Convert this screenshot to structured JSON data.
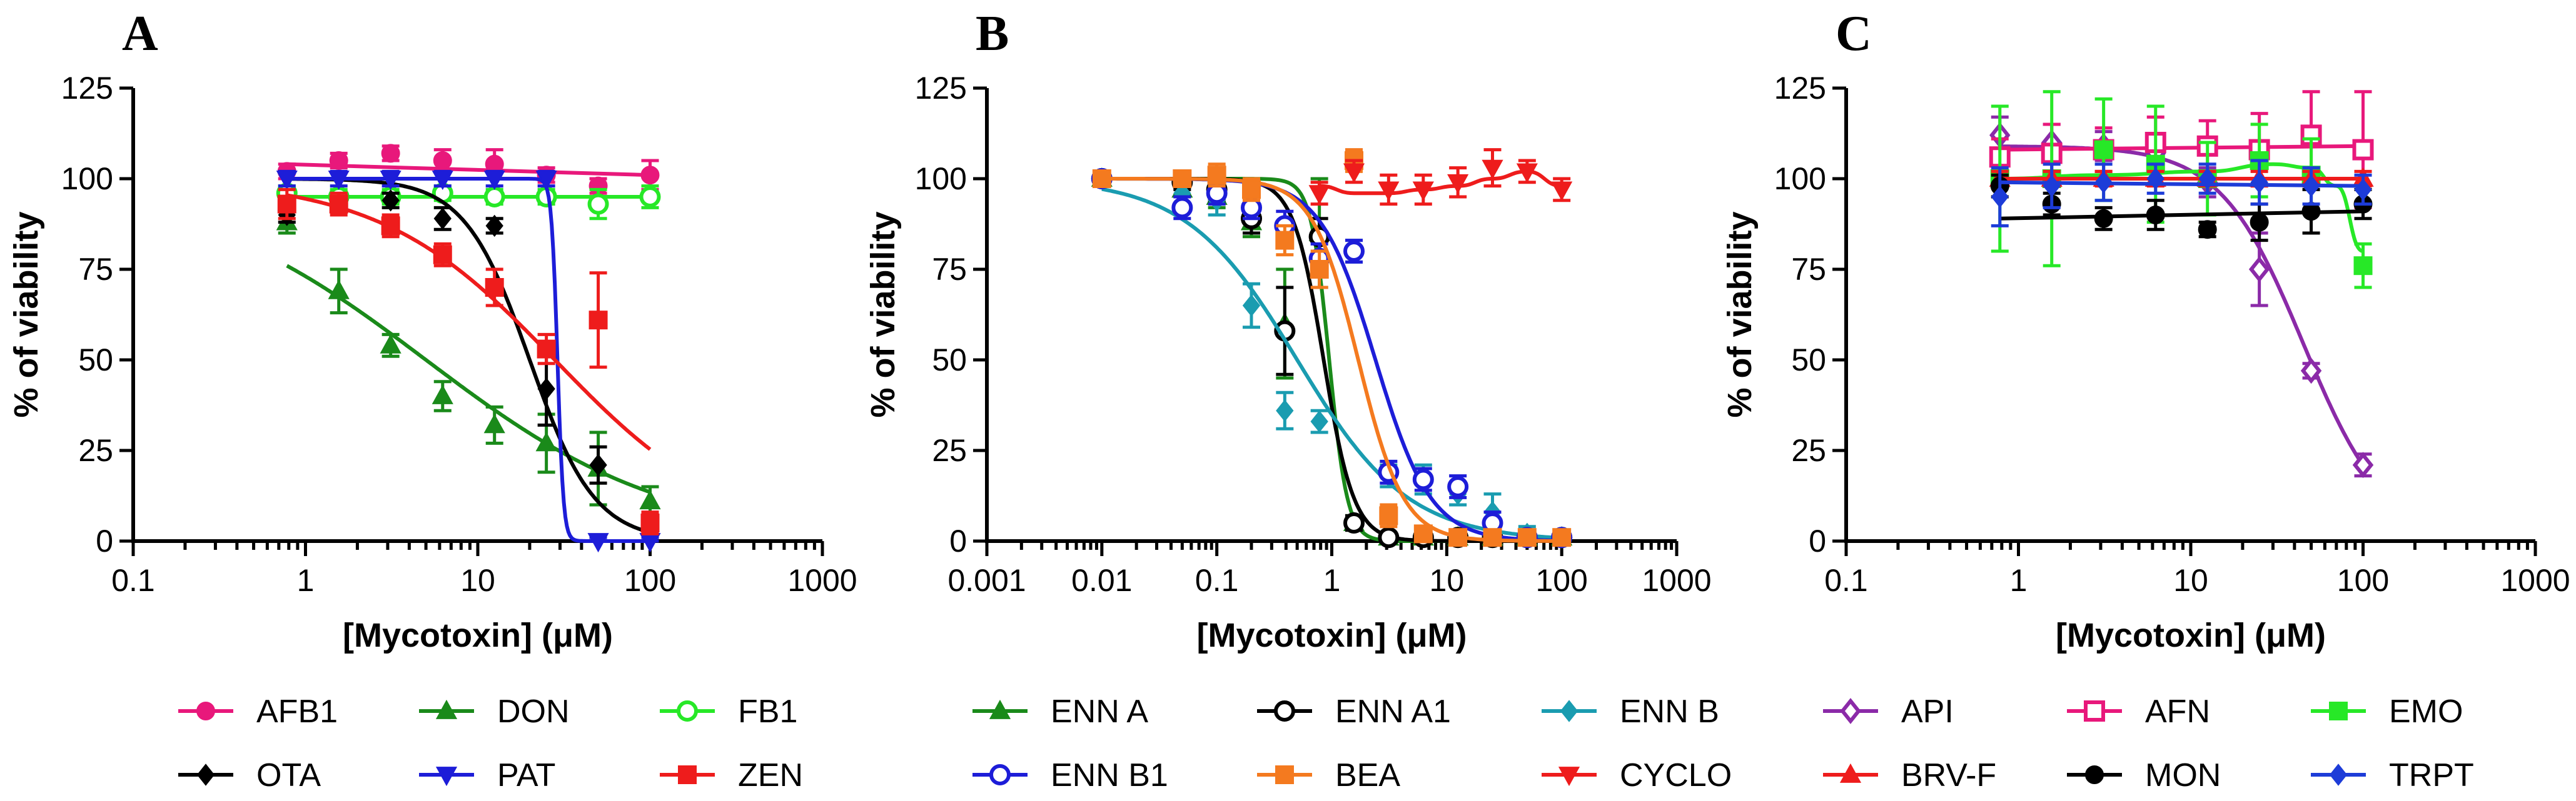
{
  "chart_data": [
    {
      "type": "scatter",
      "panel": "A",
      "xlabel": "[Mycotoxin] (μM)",
      "ylabel": "% of viability",
      "xscale": "log",
      "xlim": [
        0.1,
        1000
      ],
      "ylim": [
        0,
        125
      ],
      "xticks": [
        "0.1",
        "1",
        "10",
        "100",
        "1000"
      ],
      "yticks": [
        "0",
        "25",
        "50",
        "75",
        "100",
        "125"
      ],
      "legend_position": "bottom",
      "series": [
        {
          "name": "AFB1",
          "color": "#e8187b",
          "marker": "circle",
          "filled": true,
          "x": [
            0.78,
            1.56,
            3.12,
            6.25,
            12.5,
            25,
            50,
            100
          ],
          "y": [
            102,
            105,
            107,
            105,
            104,
            101,
            98,
            101
          ],
          "err": [
            2,
            2,
            2,
            3,
            4,
            2,
            2,
            4
          ],
          "curve": {
            "kind": "flat",
            "top": 104,
            "bottom": 101
          }
        },
        {
          "name": "DON",
          "color": "#1a8a1a",
          "marker": "triangle-up",
          "filled": true,
          "x": [
            0.78,
            1.56,
            3.12,
            6.25,
            12.5,
            25,
            50,
            100
          ],
          "y": [
            88,
            69,
            54,
            40,
            32,
            27,
            20,
            11
          ],
          "err": [
            3,
            6,
            3,
            4,
            5,
            8,
            10,
            4
          ],
          "curve": {
            "kind": "logistic",
            "top": 100,
            "bottom": 0,
            "ec50": 5,
            "hill": 0.62
          }
        },
        {
          "name": "FB1",
          "color": "#27e827",
          "marker": "circle",
          "filled": false,
          "x": [
            0.78,
            1.56,
            3.12,
            6.25,
            12.5,
            25,
            50,
            100
          ],
          "y": [
            96,
            95,
            95,
            96,
            95,
            95,
            93,
            95
          ],
          "err": [
            2,
            2,
            2,
            2,
            2,
            2,
            4,
            3
          ],
          "curve": {
            "kind": "flat",
            "top": 95,
            "bottom": 95
          }
        },
        {
          "name": "OTA",
          "color": "#000000",
          "marker": "diamond",
          "filled": true,
          "x": [
            0.78,
            1.56,
            3.12,
            6.25,
            12.5,
            25,
            50,
            100
          ],
          "y": [
            90,
            93,
            94,
            89,
            87,
            42,
            21,
            4
          ],
          "err": [
            2,
            2,
            2,
            3,
            2,
            10,
            5,
            2
          ],
          "curve": {
            "kind": "logistic",
            "top": 100,
            "bottom": 0,
            "ec50": 20,
            "hill": 2.3
          }
        },
        {
          "name": "PAT",
          "color": "#1d1dd8",
          "marker": "triangle-down",
          "filled": true,
          "x": [
            0.78,
            1.56,
            3.12,
            6.25,
            12.5,
            25,
            50,
            100
          ],
          "y": [
            100,
            100,
            100,
            100,
            100,
            100,
            0,
            0
          ],
          "err": [
            2,
            2,
            2,
            2,
            2,
            2,
            1,
            1
          ],
          "curve": {
            "kind": "logistic",
            "top": 100,
            "bottom": 0,
            "ec50": 29,
            "hill": 25
          }
        },
        {
          "name": "ZEN",
          "color": "#ee1c1c",
          "marker": "square",
          "filled": true,
          "x": [
            0.78,
            1.56,
            3.12,
            6.25,
            12.5,
            25,
            50,
            100
          ],
          "y": [
            93,
            93,
            87,
            79,
            70,
            53,
            61,
            5
          ],
          "err": [
            4,
            3,
            3,
            3,
            5,
            4,
            13,
            3
          ],
          "curve": {
            "kind": "logistic",
            "top": 100,
            "bottom": 0,
            "ec50": 28,
            "hill": 0.85
          }
        }
      ]
    },
    {
      "type": "scatter",
      "panel": "B",
      "xlabel": "[Mycotoxin] (μM)",
      "ylabel": "% of viability",
      "xscale": "log",
      "xlim": [
        0.001,
        1000
      ],
      "ylim": [
        0,
        125
      ],
      "xticks": [
        "0.001",
        "0.01",
        "0.1",
        "1",
        "10",
        "100",
        "1000"
      ],
      "yticks": [
        "0",
        "25",
        "50",
        "75",
        "100",
        "125"
      ],
      "legend_position": "bottom",
      "series": [
        {
          "name": "ENN A",
          "color": "#1a8a1a",
          "marker": "triangle-up",
          "filled": true,
          "x": [
            0.01,
            0.05,
            0.1,
            0.2,
            0.39,
            0.78,
            1.56,
            3.12,
            6.25,
            12.5,
            25,
            50,
            100
          ],
          "y": [
            100,
            97,
            95,
            88,
            60,
            85,
            5,
            1,
            1,
            1,
            1,
            1,
            1
          ],
          "err": [
            1,
            2,
            3,
            4,
            15,
            15,
            2,
            1,
            1,
            1,
            1,
            1,
            1
          ],
          "curve": {
            "kind": "logistic",
            "top": 100,
            "bottom": 0,
            "ec50": 0.95,
            "hill": 5.5
          }
        },
        {
          "name": "ENN A1",
          "color": "#000000",
          "marker": "circle",
          "filled": false,
          "x": [
            0.01,
            0.05,
            0.1,
            0.2,
            0.39,
            0.78,
            1.56,
            3.12,
            6.25,
            12.5,
            25,
            50,
            100
          ],
          "y": [
            100,
            99,
            97,
            89,
            58,
            84,
            5,
            1,
            1,
            1,
            1,
            1,
            1
          ],
          "err": [
            1,
            2,
            3,
            4,
            12,
            5,
            2,
            1,
            1,
            1,
            1,
            1,
            1
          ],
          "curve": {
            "kind": "logistic",
            "top": 100,
            "bottom": 0,
            "ec50": 0.85,
            "hill": 3.3
          }
        },
        {
          "name": "ENN B",
          "color": "#1a9cb0",
          "marker": "diamond",
          "filled": true,
          "x": [
            0.01,
            0.05,
            0.1,
            0.2,
            0.39,
            0.78,
            1.56,
            3.12,
            6.25,
            12.5,
            25,
            50,
            100
          ],
          "y": [
            100,
            96,
            94,
            65,
            36,
            33,
            80,
            18,
            17,
            13,
            8,
            2,
            1
          ],
          "err": [
            1,
            3,
            4,
            6,
            5,
            3,
            3,
            3,
            4,
            3,
            5,
            2,
            1
          ],
          "curve": {
            "kind": "logistic",
            "top": 100,
            "bottom": 0,
            "ec50": 0.5,
            "hill": 0.9
          }
        },
        {
          "name": "ENN B1",
          "color": "#1d1dd8",
          "marker": "circle",
          "filled": false,
          "x": [
            0.01,
            0.05,
            0.1,
            0.2,
            0.39,
            0.78,
            1.56,
            3.12,
            6.25,
            12.5,
            25,
            50,
            100
          ],
          "y": [
            100,
            92,
            96,
            92,
            87,
            78,
            80,
            19,
            17,
            15,
            5,
            1,
            1
          ],
          "err": [
            1,
            3,
            3,
            3,
            4,
            4,
            3,
            3,
            3,
            3,
            3,
            2,
            1
          ],
          "curve": {
            "kind": "logistic",
            "top": 100,
            "bottom": 0,
            "ec50": 2.4,
            "hill": 1.8
          }
        },
        {
          "name": "BEA",
          "color": "#f47a1f",
          "marker": "square",
          "filled": true,
          "x": [
            0.01,
            0.05,
            0.1,
            0.2,
            0.39,
            0.78,
            1.56,
            3.12,
            6.25,
            12.5,
            25,
            50,
            100
          ],
          "y": [
            100,
            100,
            101,
            97,
            83,
            75,
            105,
            7,
            2,
            1,
            1,
            1,
            1
          ],
          "err": [
            1,
            2,
            3,
            3,
            4,
            5,
            3,
            3,
            2,
            1,
            1,
            1,
            1
          ],
          "curve": {
            "kind": "logistic",
            "top": 100,
            "bottom": 0,
            "ec50": 1.7,
            "hill": 2.2
          }
        },
        {
          "name": "CYCLO",
          "color": "#ee1c1c",
          "marker": "triangle-down",
          "filled": true,
          "x": [
            0.78,
            1.56,
            3.12,
            6.25,
            12.5,
            25,
            50,
            100
          ],
          "y": [
            96,
            102,
            97,
            97,
            99,
            103,
            102,
            97
          ],
          "err": [
            3,
            3,
            4,
            4,
            4,
            5,
            3,
            3
          ],
          "curve": {
            "kind": "wave",
            "points": [
              [
                0.78,
                98
              ],
              [
                1.56,
                96
              ],
              [
                3.12,
                96
              ],
              [
                6.25,
                97
              ],
              [
                12.5,
                98
              ],
              [
                25,
                100
              ],
              [
                50,
                102
              ],
              [
                100,
                98
              ]
            ]
          }
        }
      ]
    },
    {
      "type": "scatter",
      "panel": "C",
      "xlabel": "[Mycotoxin] (μM)",
      "ylabel": "% of viability",
      "xscale": "log",
      "xlim": [
        0.1,
        1000
      ],
      "ylim": [
        0,
        125
      ],
      "xticks": [
        "0.1",
        "1",
        "10",
        "100",
        "1000"
      ],
      "yticks": [
        "0",
        "25",
        "50",
        "75",
        "100",
        "125"
      ],
      "legend_position": "bottom",
      "series": [
        {
          "name": "API",
          "color": "#8b2aa8",
          "marker": "diamond",
          "filled": false,
          "x": [
            0.78,
            1.56,
            3.12,
            6.25,
            12.5,
            25,
            50,
            100
          ],
          "y": [
            112,
            110,
            109,
            107,
            99,
            75,
            47,
            21
          ],
          "err": [
            5,
            5,
            4,
            4,
            4,
            10,
            2,
            3
          ],
          "curve": {
            "kind": "logistic",
            "top": 109,
            "bottom": 0,
            "ec50": 45,
            "hill": 1.8
          }
        },
        {
          "name": "AFN",
          "color": "#e8187b",
          "marker": "square",
          "filled": false,
          "x": [
            0.78,
            1.56,
            3.12,
            6.25,
            12.5,
            25,
            50,
            100
          ],
          "y": [
            106,
            107,
            108,
            110,
            109,
            108,
            112,
            108
          ],
          "err": [
            5,
            8,
            6,
            7,
            7,
            10,
            12,
            16
          ],
          "curve": {
            "kind": "flat",
            "top": 108,
            "bottom": 109
          }
        },
        {
          "name": "EMO",
          "color": "#27e827",
          "marker": "square",
          "filled": true,
          "x": [
            0.78,
            1.56,
            3.12,
            6.25,
            12.5,
            25,
            50,
            100
          ],
          "y": [
            100,
            100,
            108,
            104,
            100,
            105,
            101,
            76
          ],
          "err": [
            20,
            24,
            14,
            16,
            10,
            10,
            10,
            6
          ],
          "curve": {
            "kind": "wave",
            "points": [
              [
                0.78,
                100
              ],
              [
                3.12,
                101
              ],
              [
                12.5,
                102
              ],
              [
                30,
                104
              ],
              [
                50,
                103
              ],
              [
                70,
                98
              ],
              [
                100,
                80
              ]
            ]
          }
        },
        {
          "name": "BRV-F",
          "color": "#ee1c1c",
          "marker": "triangle-up",
          "filled": true,
          "x": [
            0.78,
            1.56,
            3.12,
            6.25,
            12.5,
            25,
            50,
            100
          ],
          "y": [
            100,
            100,
            100,
            100,
            100,
            100,
            100,
            100
          ],
          "err": [
            2,
            2,
            2,
            2,
            2,
            2,
            2,
            2
          ],
          "curve": {
            "kind": "flat",
            "top": 100,
            "bottom": 100
          }
        },
        {
          "name": "MON",
          "color": "#000000",
          "marker": "circle",
          "filled": true,
          "x": [
            0.78,
            1.56,
            3.12,
            6.25,
            12.5,
            25,
            50,
            100
          ],
          "y": [
            98,
            93,
            89,
            90,
            86,
            88,
            91,
            93
          ],
          "err": [
            3,
            3,
            3,
            4,
            2,
            5,
            6,
            4
          ],
          "curve": {
            "kind": "flat",
            "top": 89,
            "bottom": 91
          }
        },
        {
          "name": "TRPT",
          "color": "#1d3cd8",
          "marker": "diamond",
          "filled": true,
          "x": [
            0.78,
            1.56,
            3.12,
            6.25,
            12.5,
            25,
            50,
            100
          ],
          "y": [
            95,
            98,
            99,
            100,
            100,
            99,
            98,
            97
          ],
          "err": [
            8,
            6,
            5,
            4,
            4,
            6,
            5,
            4
          ],
          "curve": {
            "kind": "flat",
            "top": 99,
            "bottom": 98
          }
        }
      ]
    }
  ]
}
